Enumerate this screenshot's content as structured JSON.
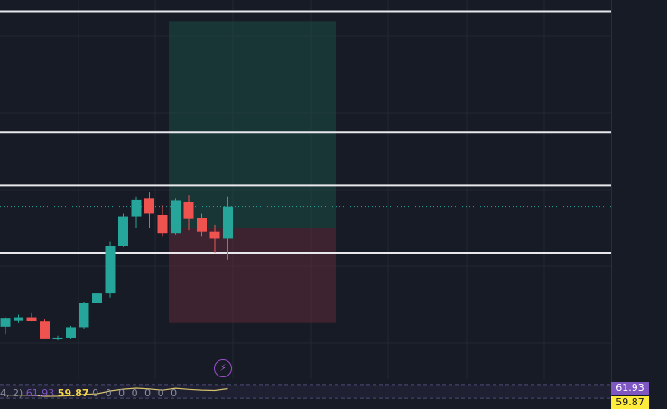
{
  "chart_data": {
    "type": "candlestick",
    "ylim": [
      58.0,
      71.5
    ],
    "candle_interval_px": 14.5,
    "candles": [
      {
        "o": 59.87,
        "h": 60.2,
        "l": 59.6,
        "c": 60.18
      },
      {
        "o": 60.1,
        "h": 60.3,
        "l": 60.0,
        "c": 60.2
      },
      {
        "o": 60.2,
        "h": 60.35,
        "l": 60.05,
        "c": 60.08
      },
      {
        "o": 60.05,
        "h": 60.15,
        "l": 59.45,
        "c": 59.45
      },
      {
        "o": 59.45,
        "h": 59.55,
        "l": 59.38,
        "c": 59.48
      },
      {
        "o": 59.48,
        "h": 59.9,
        "l": 59.45,
        "c": 59.85
      },
      {
        "o": 59.85,
        "h": 60.75,
        "l": 59.8,
        "c": 60.7
      },
      {
        "o": 60.7,
        "h": 61.2,
        "l": 60.6,
        "c": 61.05
      },
      {
        "o": 61.05,
        "h": 62.9,
        "l": 60.9,
        "c": 62.75
      },
      {
        "o": 62.75,
        "h": 63.9,
        "l": 62.7,
        "c": 63.8
      },
      {
        "o": 63.8,
        "h": 64.5,
        "l": 63.4,
        "c": 64.4
      },
      {
        "o": 64.45,
        "h": 64.65,
        "l": 63.4,
        "c": 63.9
      },
      {
        "o": 63.85,
        "h": 64.2,
        "l": 63.1,
        "c": 63.2
      },
      {
        "o": 63.2,
        "h": 64.45,
        "l": 63.15,
        "c": 64.35
      },
      {
        "o": 64.3,
        "h": 64.55,
        "l": 63.3,
        "c": 63.7
      },
      {
        "o": 63.75,
        "h": 63.9,
        "l": 63.1,
        "c": 63.25
      },
      {
        "o": 63.25,
        "h": 63.5,
        "l": 62.5,
        "c": 63.0
      },
      {
        "o": 63.0,
        "h": 64.5,
        "l": 62.25,
        "c": 64.15
      }
    ],
    "horizontal_lines": [
      71.1,
      66.8,
      64.9,
      62.5
    ],
    "last_price_dotted": 64.15,
    "position": {
      "entry": 63.4,
      "target": 70.75,
      "stop": 60.0,
      "start_index": 13,
      "end_index": 25
    },
    "indicator": {
      "label_prefix": "4, 2)",
      "value_1": "61.93",
      "value_2": "59.87",
      "zeros": "0 0 0 0 0 0 0"
    },
    "price_tags": [
      "61.93",
      "59.87"
    ]
  }
}
